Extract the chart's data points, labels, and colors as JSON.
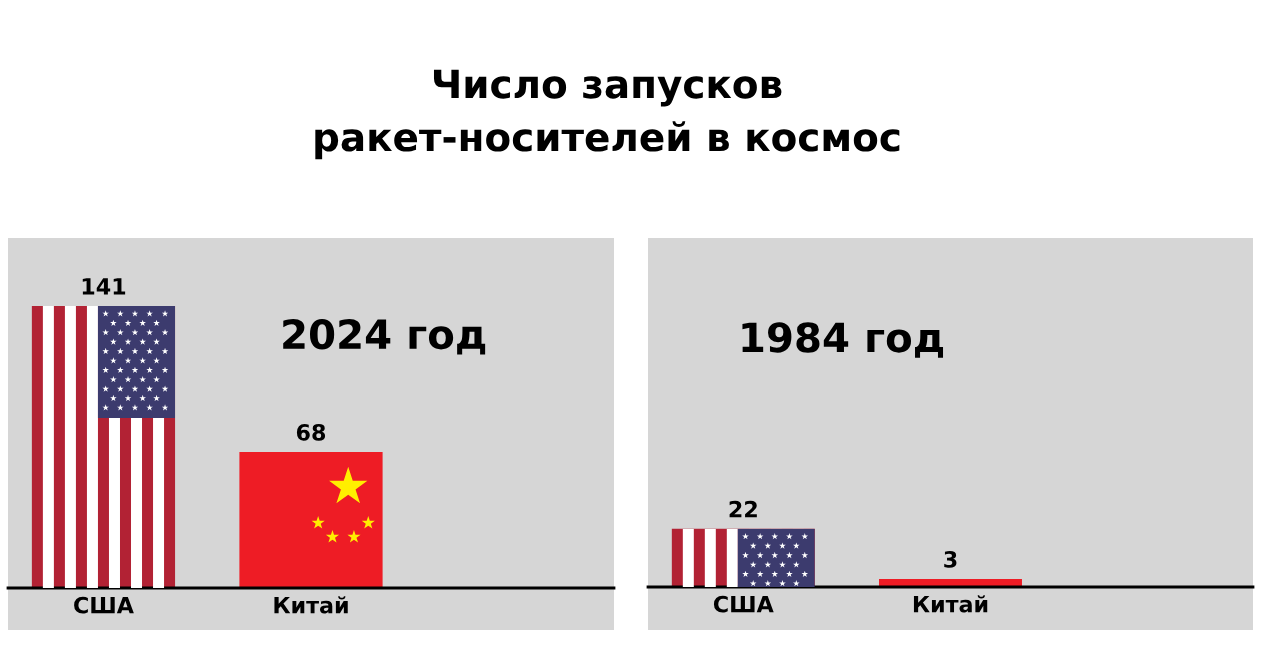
{
  "chart_data": [
    {
      "type": "bar",
      "title": "Число запусков\nракет-носителей в космос",
      "annotations": [
        "2024 год"
      ],
      "categories": [
        "США",
        "Китай",
        null
      ],
      "values": [
        141,
        68,
        null
      ],
      "colors": [
        "#b22234",
        "#ee1c25",
        null
      ],
      "ylim": [
        0,
        175
      ],
      "data_labels": true,
      "tick_labels": "x"
    },
    {
      "type": "bar",
      "annotations": [
        "1984 год"
      ],
      "categories": [
        "США",
        "Китай",
        null
      ],
      "values": [
        22,
        3,
        null
      ],
      "colors": [
        "#b22234",
        "#ee1c25",
        null
      ],
      "ylim": [
        0,
        132
      ],
      "data_labels": true,
      "tick_labels": "x"
    }
  ]
}
